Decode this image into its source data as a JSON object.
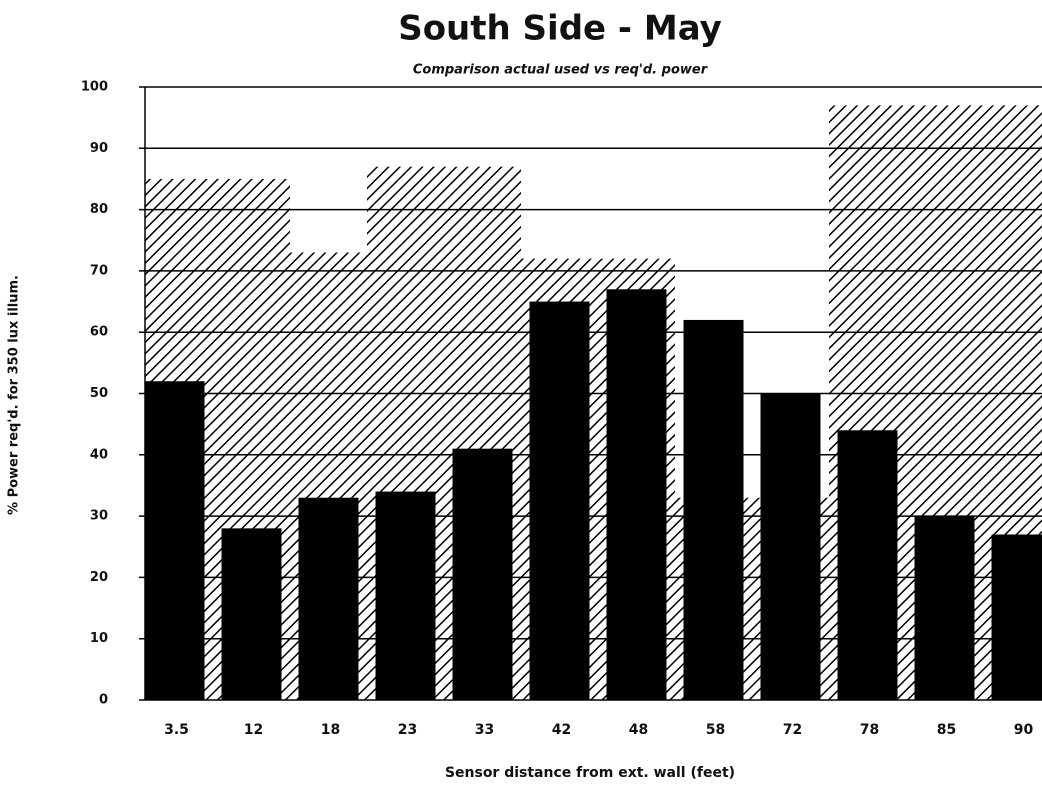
{
  "chart_data": {
    "type": "bar",
    "title": "South Side - May",
    "subtitle": "Comparison actual used vs req'd. power",
    "x_label": "Sensor distance from ext. wall (feet)",
    "y_label": "% Power req'd. for 350 lux illum.",
    "categories": [
      "3.5",
      "12",
      "18",
      "23",
      "33",
      "42",
      "48",
      "58",
      "72",
      "78",
      "85",
      "90"
    ],
    "series": [
      {
        "color": "#000000",
        "pattern": "hatch",
        "values": [
          85,
          85,
          73,
          87,
          87,
          72,
          72,
          33,
          33,
          97,
          97,
          97
        ]
      },
      {
        "color": "#000000",
        "values": [
          52,
          28,
          33,
          34,
          41,
          65,
          67,
          62,
          50,
          44,
          30,
          27
        ]
      }
    ],
    "ylim": [
      0,
      100
    ],
    "yticks": [
      0,
      10,
      20,
      30,
      40,
      50,
      60,
      70,
      80,
      90,
      100
    ],
    "grid": true
  }
}
